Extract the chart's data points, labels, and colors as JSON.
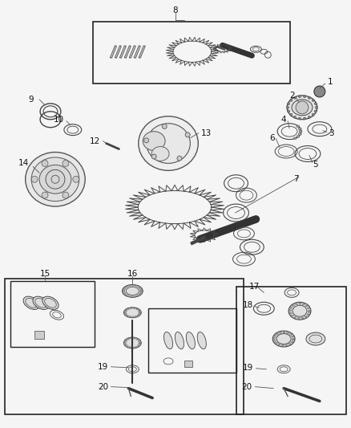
{
  "background_color": "#f5f5f5",
  "fig_width": 4.38,
  "fig_height": 5.33,
  "dpi": 100,
  "part_color": "#555555",
  "dark_color": "#333333",
  "light_gray": "#aaaaaa",
  "box_color": "#222222"
}
